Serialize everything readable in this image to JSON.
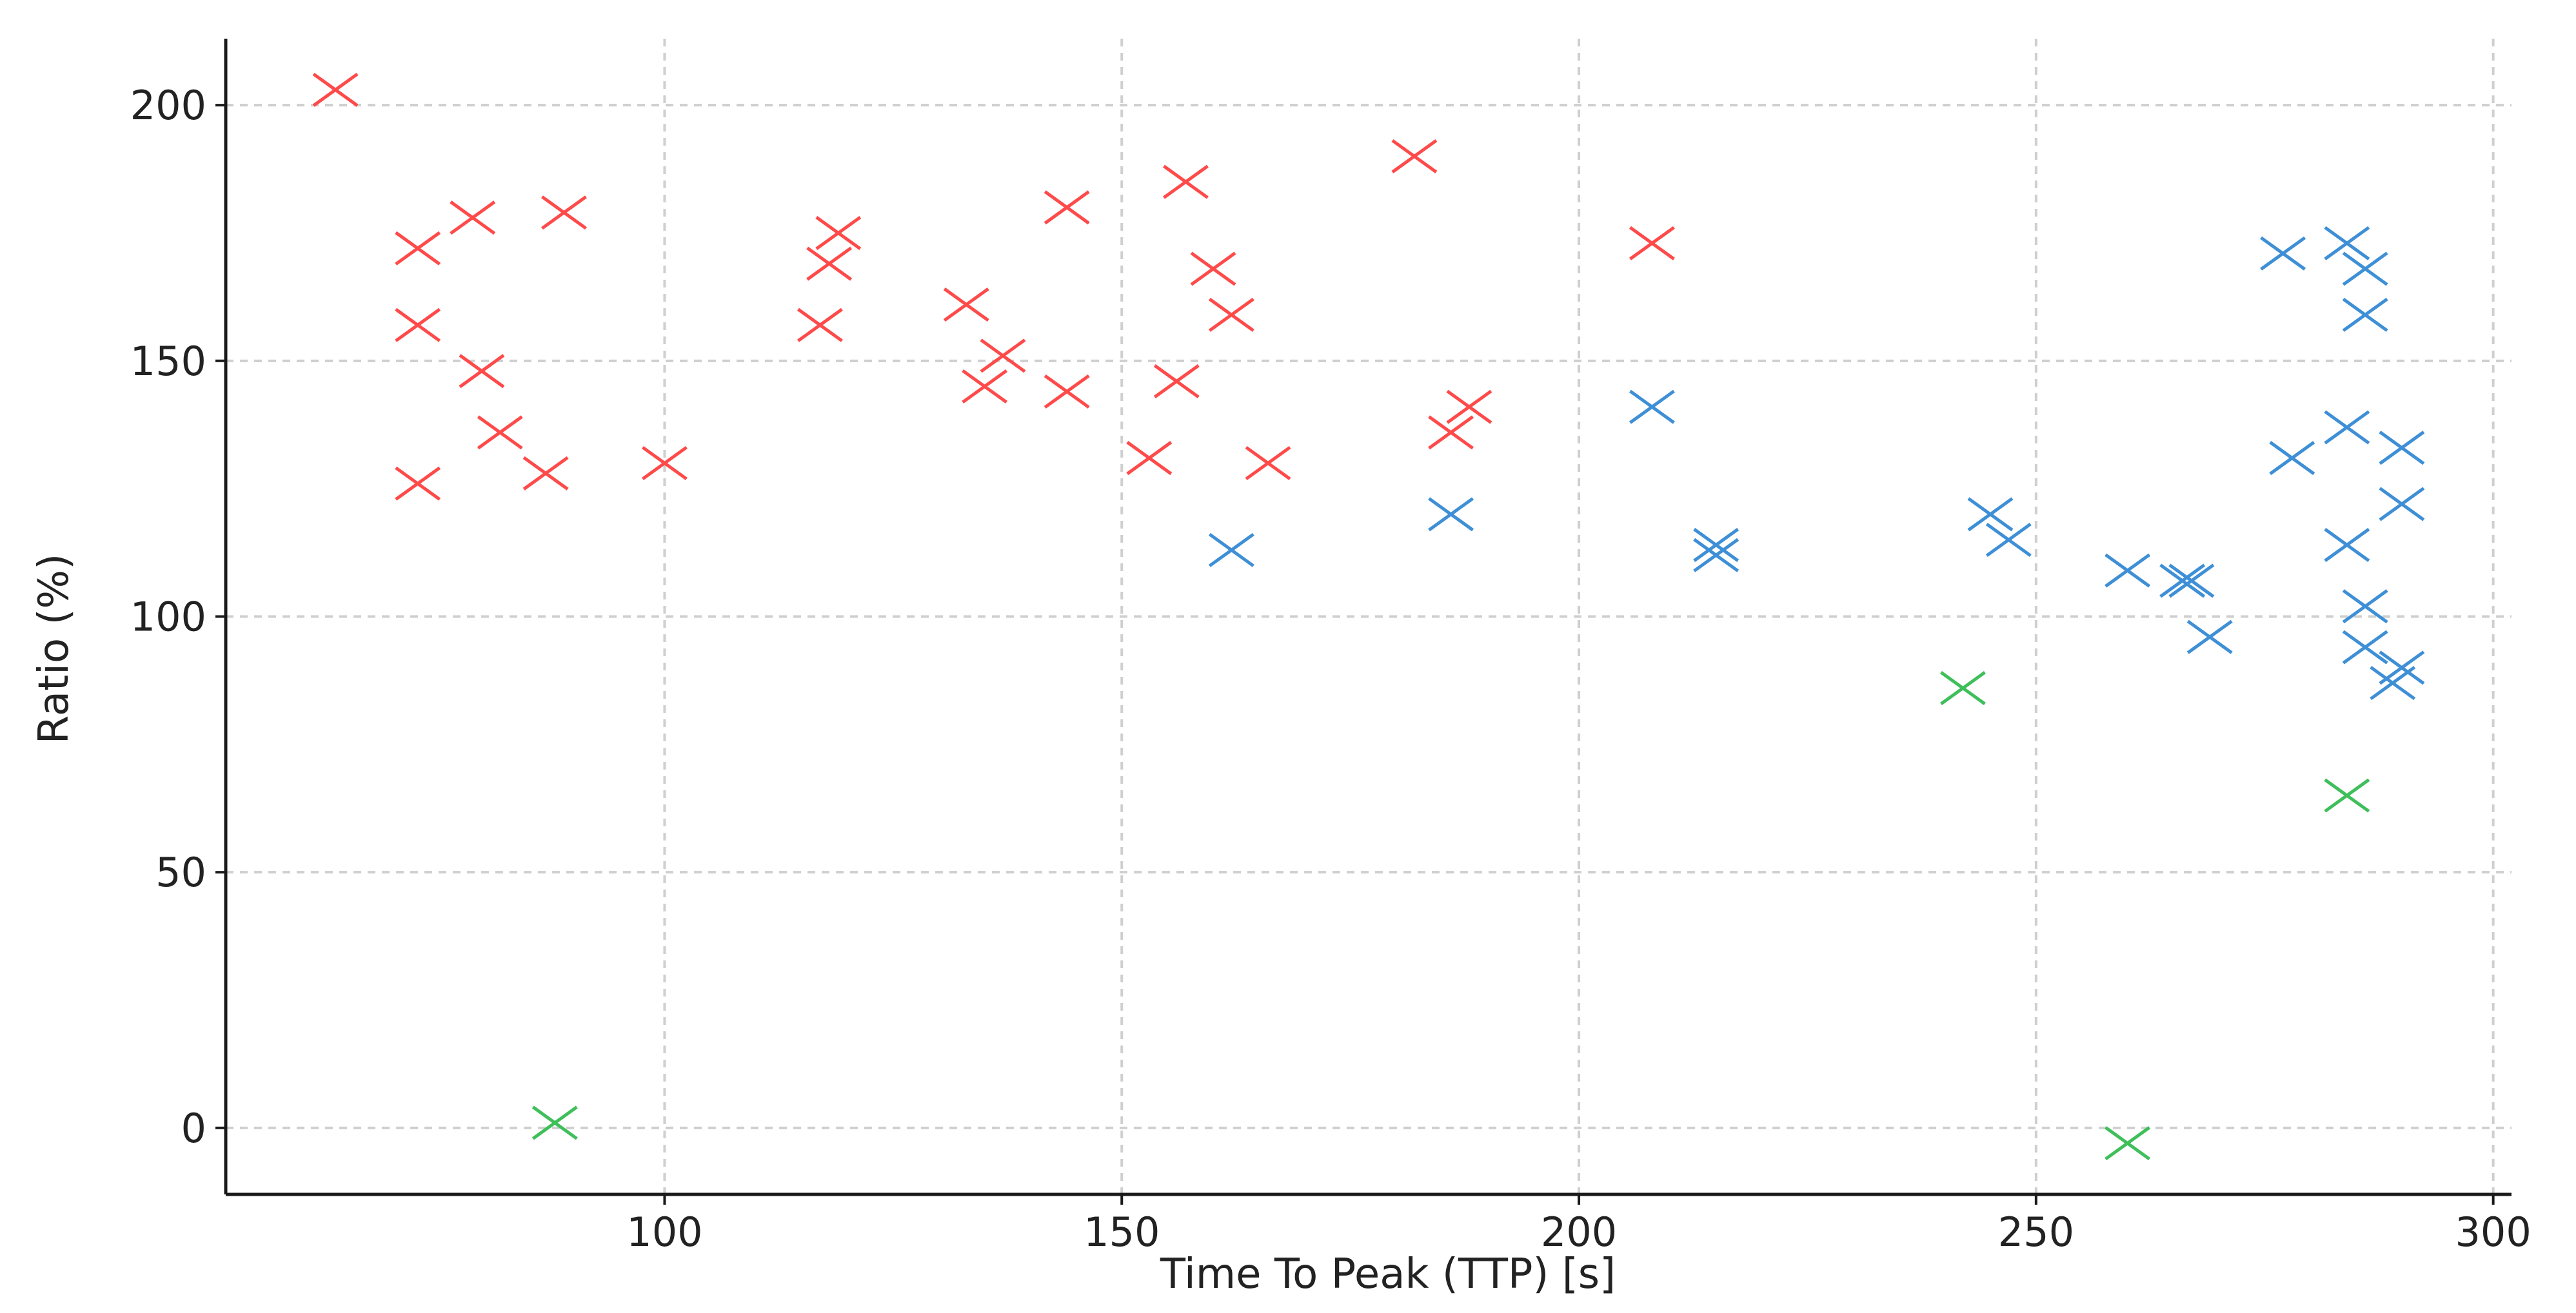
{
  "chart_data": {
    "type": "scatter",
    "title": "",
    "xlabel": "Time To Peak (TTP) [s]",
    "ylabel": "Ratio (%)",
    "xlim": [
      52,
      302
    ],
    "ylim": [
      -13,
      213
    ],
    "xticks": [
      100,
      150,
      200,
      250,
      300
    ],
    "yticks": [
      0,
      50,
      100,
      150,
      200
    ],
    "grid": true,
    "marker": "x",
    "series": [
      {
        "color": "#ff4a4a",
        "points": [
          [
            64,
            203
          ],
          [
            73,
            172
          ],
          [
            73,
            157
          ],
          [
            73,
            126
          ],
          [
            79,
            178
          ],
          [
            80,
            148
          ],
          [
            82,
            136
          ],
          [
            87,
            128
          ],
          [
            89,
            179
          ],
          [
            100,
            130
          ],
          [
            117,
            157
          ],
          [
            118,
            169
          ],
          [
            119,
            175
          ],
          [
            133,
            161
          ],
          [
            135,
            145
          ],
          [
            137,
            151
          ],
          [
            144,
            180
          ],
          [
            144,
            144
          ],
          [
            153,
            131
          ],
          [
            156,
            146
          ],
          [
            157,
            185
          ],
          [
            160,
            168
          ],
          [
            162,
            159
          ],
          [
            166,
            130
          ],
          [
            182,
            190
          ],
          [
            186,
            136
          ],
          [
            188,
            141
          ],
          [
            208,
            173
          ]
        ]
      },
      {
        "color": "#3e8fd6",
        "points": [
          [
            162,
            113
          ],
          [
            186,
            120
          ],
          [
            208,
            141
          ],
          [
            215,
            114
          ],
          [
            215,
            112
          ],
          [
            245,
            120
          ],
          [
            247,
            115
          ],
          [
            260,
            109
          ],
          [
            266,
            107
          ],
          [
            267,
            107
          ],
          [
            269,
            96
          ],
          [
            277,
            171
          ],
          [
            278,
            131
          ],
          [
            284,
            173
          ],
          [
            284,
            137
          ],
          [
            284,
            114
          ],
          [
            286,
            168
          ],
          [
            286,
            159
          ],
          [
            286,
            102
          ],
          [
            286,
            94
          ],
          [
            289,
            87
          ],
          [
            290,
            90
          ],
          [
            290,
            122
          ],
          [
            290,
            133
          ]
        ]
      },
      {
        "color": "#3fbf5a",
        "points": [
          [
            88,
            1
          ],
          [
            242,
            86
          ],
          [
            260,
            -3
          ],
          [
            284,
            65
          ]
        ]
      }
    ]
  }
}
